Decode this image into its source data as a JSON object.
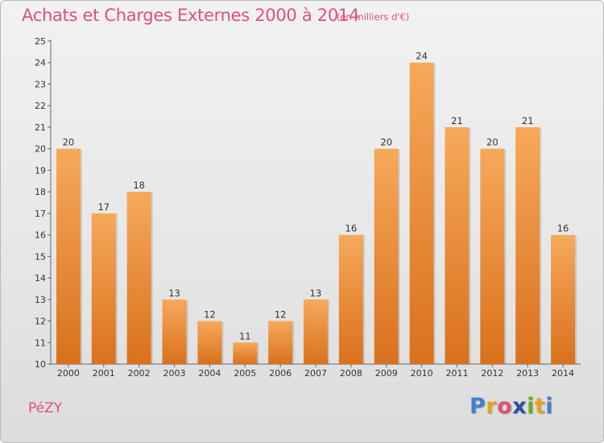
{
  "header": {
    "title": "Achats et Charges Externes 2000 à 2014",
    "subtitle": "(en milliers d'€)"
  },
  "footer": {
    "town": "PéZY",
    "logo_letters": [
      "P",
      "r",
      "o",
      "x",
      "i",
      "t",
      "i"
    ]
  },
  "colors": {
    "title": "#e0507c",
    "bar_light": "#f6a95a",
    "bar_dark": "#d9711d"
  },
  "chart_data": {
    "type": "bar",
    "title": "Achats et Charges Externes 2000 à 2014",
    "subtitle": "(en milliers d'€)",
    "xlabel": "",
    "ylabel": "",
    "ylim": [
      10,
      25
    ],
    "yticks": [
      10,
      11,
      12,
      13,
      14,
      15,
      16,
      17,
      18,
      19,
      20,
      21,
      22,
      23,
      24,
      25
    ],
    "grid": false,
    "categories": [
      "2000",
      "2001",
      "2002",
      "2003",
      "2004",
      "2005",
      "2006",
      "2007",
      "2008",
      "2009",
      "2010",
      "2011",
      "2012",
      "2013",
      "2014"
    ],
    "values": [
      20,
      17,
      18,
      13,
      12,
      11,
      12,
      13,
      16,
      20,
      24,
      21,
      20,
      21,
      16
    ]
  }
}
